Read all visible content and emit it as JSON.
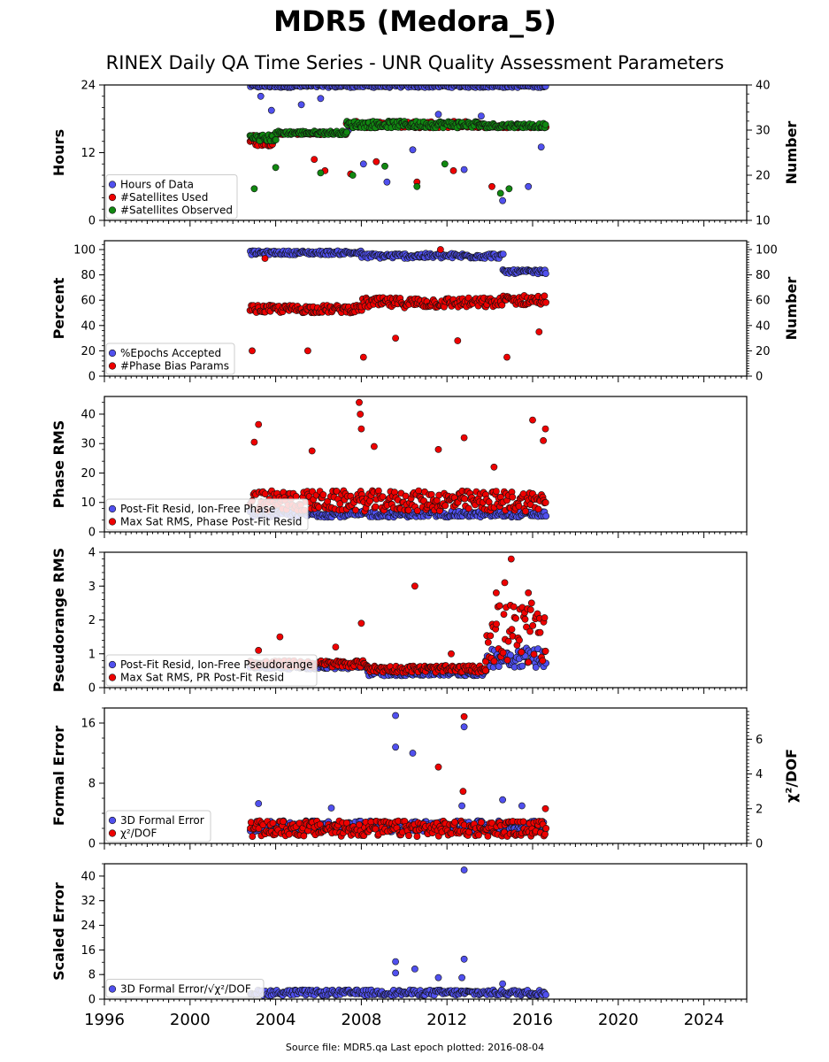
{
  "title": "MDR5 (Medora_5)",
  "subtitle": "RINEX Daily QA Time Series - UNR Quality Assessment Parameters",
  "footer": "Source file: MDR5.qa Last epoch plotted: 2016-08-04",
  "colors": {
    "blue": "#5050ee",
    "red": "#ee0000",
    "green": "#118811",
    "edge": "#111111"
  },
  "chart_data": [
    {
      "type": "scatter",
      "ylabel": "Hours",
      "y2label": "Number",
      "xlim": [
        1996,
        2026
      ],
      "ylim": [
        0,
        24
      ],
      "yticks": [
        "0",
        "12",
        "24"
      ],
      "y2lim": [
        10,
        40
      ],
      "y2ticks": [
        "10",
        "20",
        "30",
        "40"
      ],
      "legend": [
        "Hours of Data",
        "#Satellites Used",
        "#Satellites Observed"
      ],
      "series": [
        {
          "name": "Hours of Data",
          "axis": "left",
          "color": "blue",
          "baseline": 23.8,
          "spread": 0.5,
          "outliers": [
            [
              2003.3,
              22.0
            ],
            [
              2003.8,
              19.5
            ],
            [
              2005.2,
              20.5
            ],
            [
              2006.1,
              21.6
            ],
            [
              2007.4,
              16.0
            ],
            [
              2008.1,
              10.0
            ],
            [
              2009.2,
              6.8
            ],
            [
              2010.4,
              12.5
            ],
            [
              2011.6,
              18.8
            ],
            [
              2012.8,
              9.0
            ],
            [
              2013.6,
              18.5
            ],
            [
              2014.6,
              3.5
            ],
            [
              2015.8,
              6.0
            ],
            [
              2016.4,
              13.0
            ]
          ]
        },
        {
          "name": "#Satellites Used",
          "axis": "right",
          "color": "red",
          "segments": [
            [
              2002.8,
              2004.0,
              26.5,
              29.0
            ],
            [
              2004.0,
              2007.3,
              29.0,
              29.5
            ],
            [
              2007.3,
              2013.5,
              30.5,
              32.0
            ],
            [
              2013.5,
              2016.6,
              30.5,
              31.0
            ]
          ],
          "outliers": [
            [
              2005.8,
              23.5
            ],
            [
              2006.3,
              21.0
            ],
            [
              2007.5,
              20.3
            ],
            [
              2008.7,
              23.0
            ],
            [
              2010.6,
              18.5
            ],
            [
              2012.3,
              21.0
            ],
            [
              2014.1,
              17.5
            ]
          ]
        },
        {
          "name": "#Satellites Observed",
          "axis": "right",
          "color": "green",
          "segments": [
            [
              2002.8,
              2004.0,
              27.5,
              29.0
            ],
            [
              2004.0,
              2007.3,
              29.0,
              29.8
            ],
            [
              2007.3,
              2013.5,
              30.5,
              32.0
            ],
            [
              2013.5,
              2016.6,
              30.5,
              31.5
            ]
          ],
          "outliers": [
            [
              2003.0,
              17.0
            ],
            [
              2004.0,
              21.7
            ],
            [
              2006.1,
              20.5
            ],
            [
              2007.6,
              20.0
            ],
            [
              2009.1,
              22.0
            ],
            [
              2010.6,
              17.5
            ],
            [
              2011.9,
              22.5
            ],
            [
              2014.5,
              16.0
            ],
            [
              2014.9,
              17.0
            ]
          ]
        }
      ],
      "data_range": [
        2002.8,
        2016.6
      ]
    },
    {
      "type": "scatter",
      "ylabel": "Percent",
      "y2label": "Number",
      "xlim": [
        1996,
        2026
      ],
      "ylim": [
        0,
        107
      ],
      "yticks": [
        "0",
        "20",
        "40",
        "60",
        "80",
        "100"
      ],
      "y2lim": [
        0,
        107
      ],
      "y2ticks": [
        "0",
        "20",
        "40",
        "60",
        "80",
        "100"
      ],
      "legend": [
        "%Epochs Accepted",
        "#Phase Bias Params"
      ],
      "series": [
        {
          "name": "%Epochs Accepted",
          "axis": "left",
          "color": "blue",
          "segments": [
            [
              2002.8,
              2008.0,
              96,
              99
            ],
            [
              2008.0,
              2014.6,
              93,
              97
            ],
            [
              2014.6,
              2016.6,
              81,
              84
            ]
          ],
          "outliers": []
        },
        {
          "name": "#Phase Bias Params",
          "axis": "right",
          "color": "red",
          "segments": [
            [
              2002.8,
              2008.0,
              50,
              56
            ],
            [
              2008.0,
              2014.5,
              54,
              62
            ],
            [
              2014.5,
              2016.6,
              56,
              64
            ]
          ],
          "outliers": [
            [
              2002.9,
              20.0
            ],
            [
              2003.5,
              93.0
            ],
            [
              2005.5,
              20.0
            ],
            [
              2008.1,
              15.0
            ],
            [
              2009.6,
              30.0
            ],
            [
              2011.7,
              100.0
            ],
            [
              2012.5,
              28.0
            ],
            [
              2014.8,
              15.0
            ],
            [
              2016.3,
              35.0
            ]
          ]
        }
      ],
      "data_range": [
        2002.8,
        2016.6
      ]
    },
    {
      "type": "scatter",
      "ylabel": "Phase RMS",
      "xlim": [
        1996,
        2026
      ],
      "ylim": [
        0,
        46
      ],
      "yticks": [
        "0",
        "10",
        "20",
        "30",
        "40"
      ],
      "legend": [
        "Post-Fit Resid, Ion-Free Phase",
        "Max Sat RMS, Phase Post-Fit Resid"
      ],
      "series": [
        {
          "name": "Post-Fit Resid, Ion-Free Phase",
          "axis": "left",
          "color": "blue",
          "segments": [
            [
              2002.8,
              2016.6,
              5,
              7
            ]
          ],
          "outliers": []
        },
        {
          "name": "Max Sat RMS, Phase Post-Fit Resid",
          "axis": "left",
          "color": "red",
          "segments": [
            [
              2002.8,
              2016.6,
              7,
              14
            ]
          ],
          "outliers": [
            [
              2003.0,
              30.5
            ],
            [
              2003.2,
              36.5
            ],
            [
              2005.7,
              27.5
            ],
            [
              2007.9,
              44.0
            ],
            [
              2007.95,
              40.0
            ],
            [
              2008.0,
              35.0
            ],
            [
              2008.6,
              29.0
            ],
            [
              2011.6,
              28.0
            ],
            [
              2012.8,
              32.0
            ],
            [
              2014.2,
              22.0
            ],
            [
              2016.0,
              38.0
            ],
            [
              2016.5,
              31.0
            ],
            [
              2016.6,
              35.0
            ]
          ]
        }
      ],
      "data_range": [
        2002.8,
        2016.6
      ]
    },
    {
      "type": "scatter",
      "ylabel": "Pseudorange RMS",
      "xlim": [
        1996,
        2026
      ],
      "ylim": [
        0,
        4
      ],
      "yticks": [
        "0",
        "1",
        "2",
        "3",
        "4"
      ],
      "legend": [
        "Post-Fit Resid, Ion-Free Pseudorange",
        "Max Sat RMS, PR Post-Fit Resid"
      ],
      "series": [
        {
          "name": "Post-Fit Resid, Ion-Free Pseudorange",
          "axis": "left",
          "color": "blue",
          "segments": [
            [
              2002.8,
              2008.3,
              0.55,
              0.7
            ],
            [
              2008.3,
              2013.8,
              0.35,
              0.5
            ],
            [
              2013.8,
              2016.6,
              0.6,
              1.2
            ]
          ],
          "outliers": []
        },
        {
          "name": "Max Sat RMS, PR Post-Fit Resid",
          "axis": "left",
          "color": "red",
          "segments": [
            [
              2002.8,
              2008.3,
              0.6,
              0.8
            ],
            [
              2008.3,
              2013.8,
              0.45,
              0.65
            ],
            [
              2013.8,
              2016.6,
              0.7,
              2.5
            ]
          ],
          "outliers": [
            [
              2003.2,
              1.1
            ],
            [
              2004.2,
              1.5
            ],
            [
              2006.8,
              1.2
            ],
            [
              2008.0,
              1.9
            ],
            [
              2010.5,
              3.0
            ],
            [
              2012.2,
              1.0
            ],
            [
              2014.3,
              2.8
            ],
            [
              2014.7,
              3.1
            ],
            [
              2015.0,
              3.8
            ],
            [
              2015.8,
              2.8
            ]
          ]
        }
      ],
      "data_range": [
        2002.8,
        2016.6
      ]
    },
    {
      "type": "scatter",
      "ylabel": "Formal Error",
      "y2label": "χ²/DOF",
      "xlim": [
        1996,
        2026
      ],
      "ylim": [
        0,
        18
      ],
      "yticks": [
        "0",
        "8",
        "16"
      ],
      "y2lim": [
        0,
        7.8
      ],
      "y2ticks": [
        "0",
        "2",
        "4",
        "6"
      ],
      "legend": [
        "3D Formal Error",
        "χ²/DOF"
      ],
      "series": [
        {
          "name": "3D Formal Error",
          "axis": "left",
          "color": "blue",
          "segments": [
            [
              2002.8,
              2016.6,
              1.5,
              3.0
            ]
          ],
          "outliers": [
            [
              2003.2,
              5.3
            ],
            [
              2006.6,
              4.7
            ],
            [
              2009.6,
              17.0
            ],
            [
              2009.6,
              12.8
            ],
            [
              2010.4,
              12.0
            ],
            [
              2012.8,
              15.5
            ],
            [
              2012.7,
              5.0
            ],
            [
              2014.6,
              5.8
            ],
            [
              2015.5,
              5.0
            ]
          ]
        },
        {
          "name": "χ²/DOF",
          "axis": "right",
          "color": "red",
          "segments": [
            [
              2002.8,
              2016.6,
              0.4,
              1.3
            ]
          ],
          "outliers": [
            [
              2011.6,
              4.4
            ],
            [
              2012.8,
              7.3
            ],
            [
              2012.75,
              3.0
            ],
            [
              2016.6,
              2.0
            ]
          ]
        }
      ],
      "data_range": [
        2002.8,
        2016.6
      ]
    },
    {
      "type": "scatter",
      "ylabel": "Scaled Error",
      "xlim": [
        1996,
        2026
      ],
      "ylim": [
        0,
        44
      ],
      "yticks": [
        "0",
        "8",
        "16",
        "24",
        "32",
        "40"
      ],
      "xticks": [
        "1996",
        "2000",
        "2004",
        "2008",
        "2012",
        "2016",
        "2020",
        "2024"
      ],
      "legend": [
        "3D Formal Error/√χ²/DOF"
      ],
      "series": [
        {
          "name": "3D Formal Error/√χ²/DOF",
          "axis": "left",
          "color": "blue",
          "segments": [
            [
              2002.8,
              2016.6,
              1.2,
              3.0
            ]
          ],
          "outliers": [
            [
              2009.6,
              12.2
            ],
            [
              2009.6,
              8.5
            ],
            [
              2010.5,
              9.8
            ],
            [
              2011.6,
              7.0
            ],
            [
              2012.8,
              42.0
            ],
            [
              2012.8,
              13.0
            ],
            [
              2012.7,
              7.0
            ],
            [
              2014.6,
              5.0
            ]
          ]
        }
      ],
      "data_range": [
        2002.8,
        2016.6
      ]
    }
  ]
}
